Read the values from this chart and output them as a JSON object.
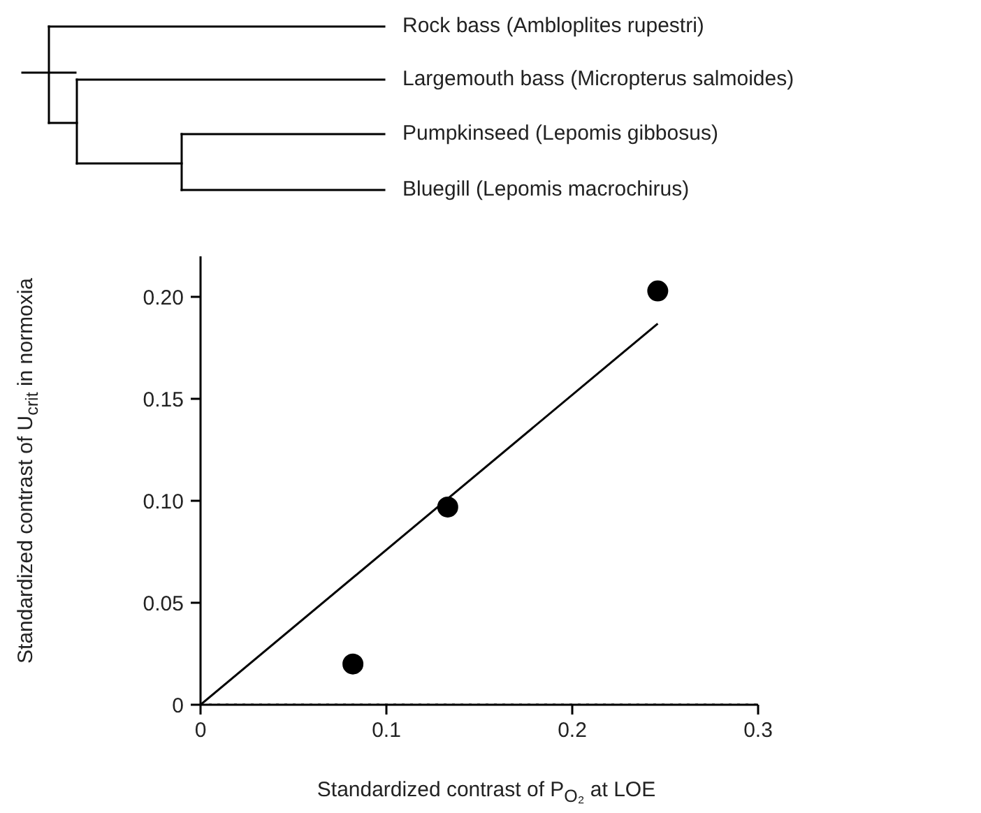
{
  "chart_data": {
    "type": "scatter",
    "xlabel": "Standardized contrast of P$_{O₂}$ at LOE",
    "ylabel": "Standardized contrast of U$_{crit}$ in normoxia",
    "annotations": [
      "Rock bass (Ambloplites rupestri)",
      "Largemouth bass (Micropterus salmoides)",
      "Pumpkinseed (Lepomis gibbosus)",
      "Bluegill (Lepomis macrochirus)"
    ],
    "series": [
      {
        "color": "#000000",
        "x": [
          0.082,
          0.133,
          0.246
        ],
        "values": [
          0.02,
          0.097,
          0.203
        ],
        "marker": "circle"
      },
      {
        "type": "line",
        "color": "#000000",
        "x": [
          0,
          0.246
        ],
        "values": [
          0,
          0.187
        ],
        "line_style": "solid"
      }
    ],
    "xlim": [
      0,
      0.3
    ],
    "ylim": [
      0,
      0.22
    ],
    "xticks": [
      0,
      0.1,
      0.2,
      0.3
    ],
    "yticks": [
      {
        "value": 0,
        "label": "0"
      },
      {
        "value": 0.05,
        "label": "0.05"
      },
      {
        "value": 0.1,
        "label": "0.10"
      },
      {
        "value": 0.15,
        "label": "0.15"
      },
      {
        "value": 0.2,
        "label": "0.20"
      }
    ],
    "ref_lines": [
      {
        "axis": "y",
        "value": 0,
        "line_style": "dotted",
        "color": "#000000"
      }
    ],
    "grid": false
  }
}
